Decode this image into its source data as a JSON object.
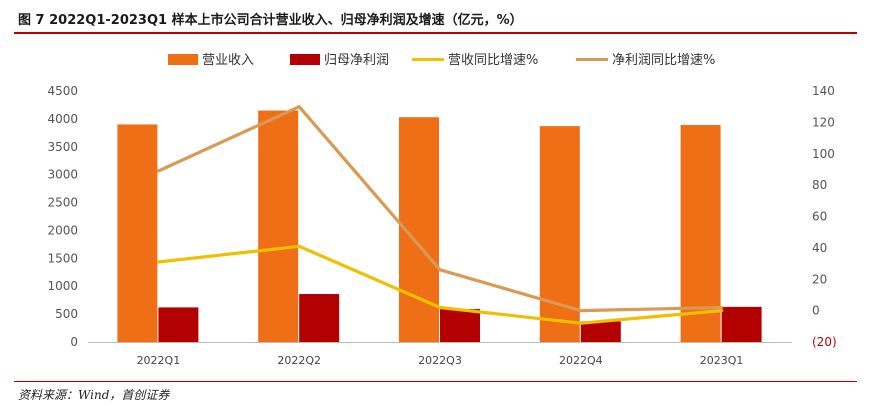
{
  "title": "图 7 2022Q1-2023Q1 样本上市公司合计营业收入、归母净利润及增速（亿元，%）",
  "source": "资料来源：Wind，首创证券",
  "chart_data": {
    "type": "bar",
    "categories": [
      "2022Q1",
      "2022Q2",
      "2022Q3",
      "2022Q4",
      "2023Q1"
    ],
    "series": [
      {
        "name": "营业收入",
        "kind": "bar",
        "axis": "left",
        "color": "#ee6f16",
        "values": [
          3900,
          4150,
          4030,
          3870,
          3890
        ]
      },
      {
        "name": "归母净利润",
        "kind": "bar",
        "axis": "left",
        "color": "#b30000",
        "values": [
          620,
          860,
          590,
          370,
          630
        ]
      },
      {
        "name": "营收同比增速%",
        "kind": "line",
        "axis": "right",
        "color": "#f0c000",
        "values": [
          31,
          41,
          2,
          -8,
          0
        ]
      },
      {
        "name": "净利润同比增速%",
        "kind": "line",
        "axis": "right",
        "color": "#d89a55",
        "values": [
          89,
          130,
          26,
          0,
          2
        ]
      }
    ],
    "y_left": {
      "min": 0,
      "max": 4500,
      "step": 500,
      "ticks": [
        "0",
        "500",
        "1000",
        "1500",
        "2000",
        "2500",
        "3000",
        "3500",
        "4000",
        "4500"
      ]
    },
    "y_right": {
      "min": -20,
      "max": 140,
      "step": 20,
      "ticks": [
        "(20)",
        "0",
        "20",
        "40",
        "60",
        "80",
        "100",
        "120",
        "140"
      ]
    },
    "legend_position": "top",
    "grid": false
  }
}
